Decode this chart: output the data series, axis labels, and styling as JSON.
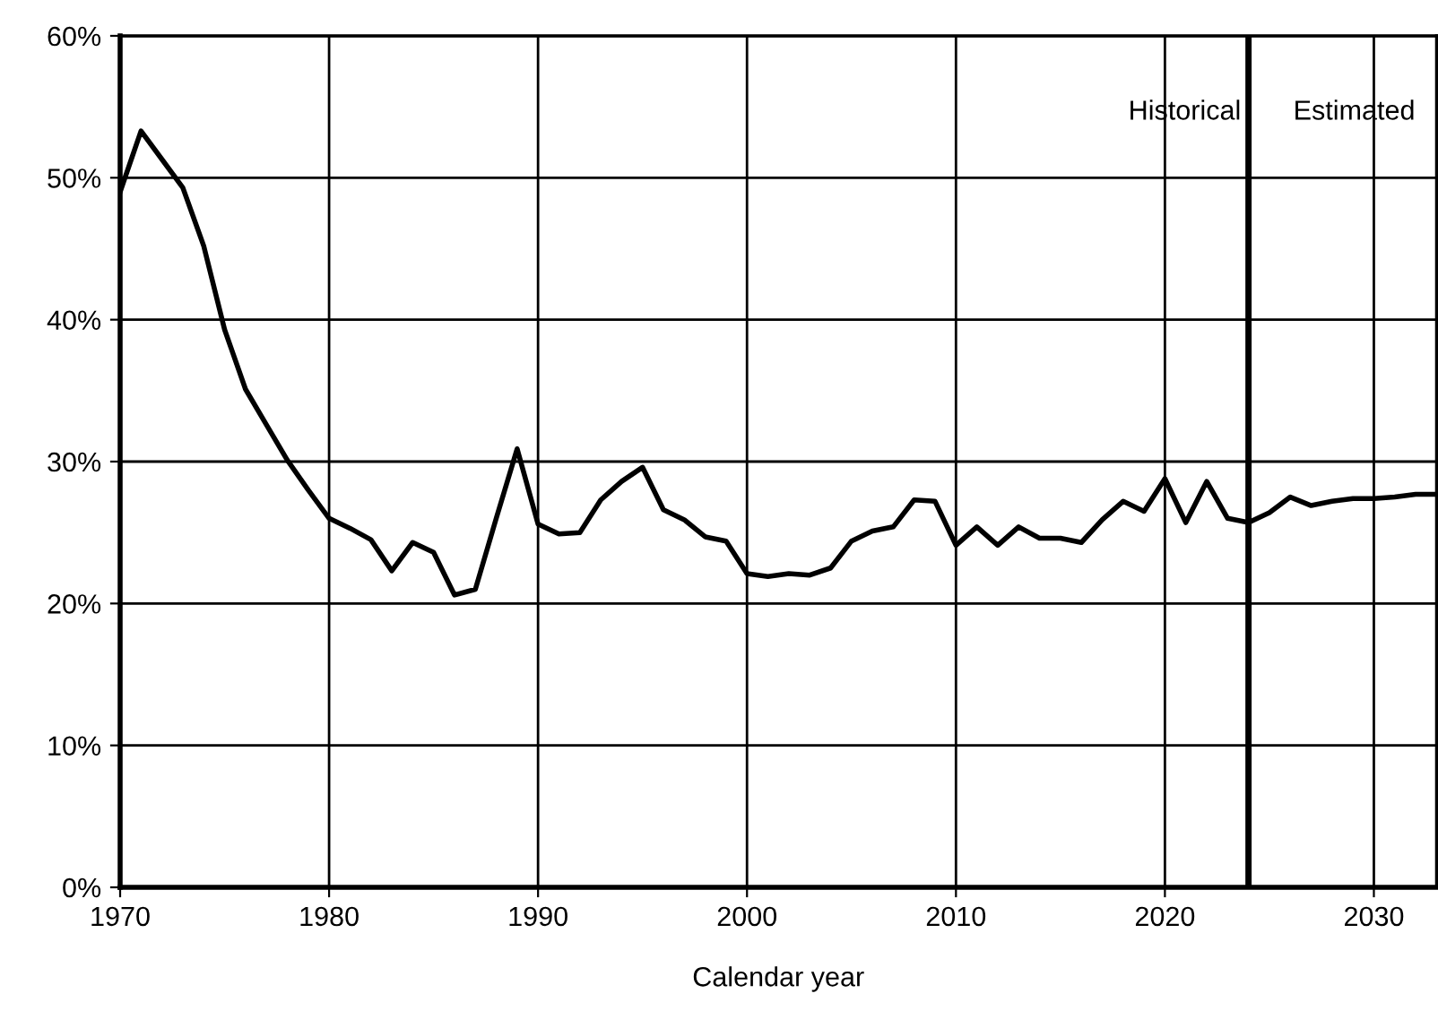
{
  "chart_data": {
    "type": "line",
    "xlabel": "Calendar year",
    "x": [
      1970,
      1971,
      1972,
      1973,
      1974,
      1975,
      1976,
      1977,
      1978,
      1979,
      1980,
      1981,
      1982,
      1983,
      1984,
      1985,
      1986,
      1987,
      1988,
      1989,
      1990,
      1991,
      1992,
      1993,
      1994,
      1995,
      1996,
      1997,
      1998,
      1999,
      2000,
      2001,
      2002,
      2003,
      2004,
      2005,
      2006,
      2007,
      2008,
      2009,
      2010,
      2011,
      2012,
      2013,
      2014,
      2015,
      2016,
      2017,
      2018,
      2019,
      2020,
      2021,
      2022,
      2023,
      2024,
      2025,
      2026,
      2027,
      2028,
      2029,
      2030,
      2031,
      2032,
      2033
    ],
    "series": [
      {
        "color": "#000000",
        "values": [
          49.0,
          53.3,
          51.3,
          49.3,
          45.2,
          39.3,
          35.1,
          32.6,
          30.1,
          28.0,
          26.0,
          25.3,
          24.5,
          22.3,
          24.3,
          23.6,
          20.6,
          21.0,
          26.0,
          30.9,
          25.6,
          24.9,
          25.0,
          27.3,
          28.6,
          29.6,
          26.6,
          25.9,
          24.7,
          24.4,
          22.1,
          21.9,
          22.1,
          22.0,
          22.5,
          24.4,
          25.1,
          25.4,
          27.3,
          27.2,
          24.1,
          25.4,
          24.1,
          25.4,
          24.6,
          24.6,
          24.3,
          25.9,
          27.2,
          26.5,
          28.8,
          25.7,
          28.6,
          26.0,
          25.7,
          26.4,
          27.5,
          26.9,
          27.2,
          27.4,
          27.4,
          27.5,
          27.7,
          27.7
        ]
      }
    ],
    "xlim": [
      1970,
      2033
    ],
    "ylim": [
      0,
      60
    ],
    "xticks": [
      1970,
      1980,
      1990,
      2000,
      2010,
      2020,
      2030
    ],
    "yticks": [
      {
        "value": 0,
        "label": "0%"
      },
      {
        "value": 10,
        "label": "10%"
      },
      {
        "value": 20,
        "label": "20%"
      },
      {
        "value": 30,
        "label": "30%"
      },
      {
        "value": 40,
        "label": "40%"
      },
      {
        "value": 50,
        "label": "50%"
      },
      {
        "value": 60,
        "label": "60%"
      }
    ],
    "grid": true,
    "marker": "none",
    "line_style": "solid",
    "legend": false,
    "ref_lines": [
      {
        "axis": "x",
        "value": 2024,
        "color": "#000000"
      }
    ],
    "annotations": [
      "Historical",
      "Estimated"
    ]
  }
}
